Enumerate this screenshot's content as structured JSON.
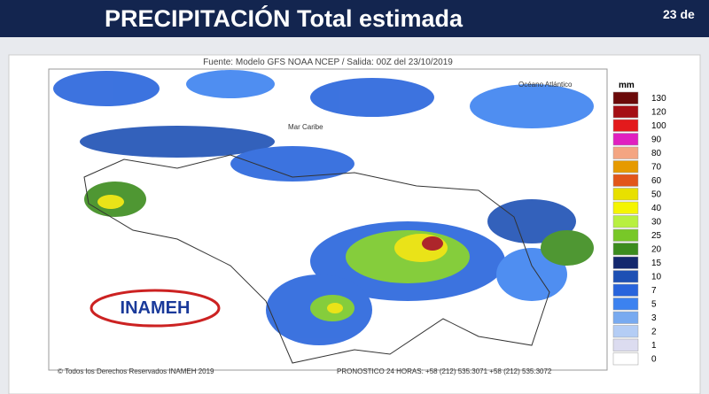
{
  "header": {
    "title": "PRECIPITACIÓN Total estimada",
    "date": "23 de"
  },
  "map": {
    "source": "Fuente: Modelo GFS NOAA  NCEP / Salida: 00Z del  23/10/2019",
    "labels": [
      "Mar Caribe",
      "Océano Atlántico"
    ],
    "logo": "INAMEH",
    "copyright": "© Todos los Derechos Reservados INAMEH 2019",
    "forecast": "PRONOSTICO 24 HORAS: +58 (212) 535.3071 +58 (212) 535.3072"
  },
  "legend": {
    "unit": "mm",
    "values": [
      130,
      120,
      100,
      90,
      80,
      70,
      60,
      50,
      40,
      30,
      25,
      20,
      15,
      10,
      7,
      5,
      3,
      2,
      1,
      0
    ],
    "colors": [
      "#6b0a0a",
      "#a50f15",
      "#e31a1c",
      "#e020c0",
      "#f4a582",
      "#e69a00",
      "#e2561a",
      "#e8e000",
      "#f5f500",
      "#b8f040",
      "#78c828",
      "#3c8c1e",
      "#14286e",
      "#1e50b4",
      "#2864dc",
      "#3c82f0",
      "#78aaf0",
      "#b4cdf5",
      "#dcdcf0",
      "#ffffff"
    ]
  }
}
